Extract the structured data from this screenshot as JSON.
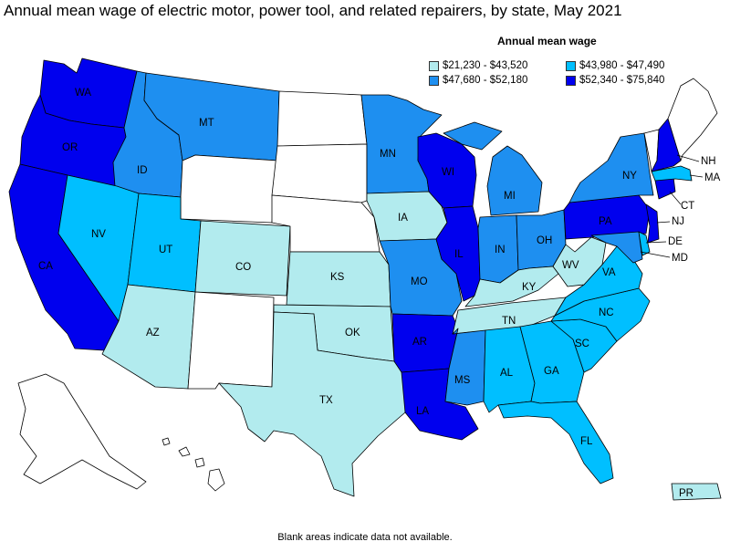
{
  "title": "Annual mean wage of electric motor, power tool, and related repairers, by state, May 2021",
  "legend": {
    "title": "Annual mean wage",
    "items": [
      {
        "label": "$21,230 - $43,520",
        "color": "#b2ebee"
      },
      {
        "label": "$43,980 - $47,490",
        "color": "#00bfff"
      },
      {
        "label": "$47,680 - $52,180",
        "color": "#1e8ff0"
      },
      {
        "label": "$52,340 - $75,840",
        "color": "#0000ee"
      }
    ]
  },
  "note": "Blank areas indicate data not available.",
  "states": {
    "WA": {
      "label": "WA",
      "tier": 4
    },
    "OR": {
      "label": "OR",
      "tier": 4
    },
    "CA": {
      "label": "CA",
      "tier": 4
    },
    "ID": {
      "label": "ID",
      "tier": 3
    },
    "NV": {
      "label": "NV",
      "tier": 2
    },
    "MT": {
      "label": "MT",
      "tier": 3
    },
    "WY": {
      "label": "",
      "tier": 0
    },
    "UT": {
      "label": "UT",
      "tier": 2
    },
    "AZ": {
      "label": "AZ",
      "tier": 1
    },
    "CO": {
      "label": "CO",
      "tier": 1
    },
    "NM": {
      "label": "",
      "tier": 0
    },
    "ND": {
      "label": "",
      "tier": 0
    },
    "SD": {
      "label": "",
      "tier": 0
    },
    "NE": {
      "label": "",
      "tier": 0
    },
    "KS": {
      "label": "KS",
      "tier": 1
    },
    "OK": {
      "label": "OK",
      "tier": 1
    },
    "TX": {
      "label": "TX",
      "tier": 1
    },
    "MN": {
      "label": "MN",
      "tier": 3
    },
    "IA": {
      "label": "IA",
      "tier": 1
    },
    "MO": {
      "label": "MO",
      "tier": 3
    },
    "AR": {
      "label": "AR",
      "tier": 4
    },
    "LA": {
      "label": "LA",
      "tier": 4
    },
    "WI": {
      "label": "WI",
      "tier": 4
    },
    "IL": {
      "label": "IL",
      "tier": 4
    },
    "MI": {
      "label": "MI",
      "tier": 3
    },
    "IN": {
      "label": "IN",
      "tier": 3
    },
    "OH": {
      "label": "OH",
      "tier": 3
    },
    "KY": {
      "label": "KY",
      "tier": 1
    },
    "TN": {
      "label": "TN",
      "tier": 1
    },
    "MS": {
      "label": "MS",
      "tier": 3
    },
    "AL": {
      "label": "AL",
      "tier": 2
    },
    "GA": {
      "label": "GA",
      "tier": 2
    },
    "FL": {
      "label": "FL",
      "tier": 2
    },
    "SC": {
      "label": "SC",
      "tier": 2
    },
    "NC": {
      "label": "NC",
      "tier": 2
    },
    "VA": {
      "label": "VA",
      "tier": 2
    },
    "WV": {
      "label": "WV",
      "tier": 1
    },
    "PA": {
      "label": "PA",
      "tier": 4
    },
    "NY": {
      "label": "NY",
      "tier": 3
    },
    "MD": {
      "label": "MD",
      "tier": 3
    },
    "DE": {
      "label": "DE",
      "tier": 2
    },
    "NJ": {
      "label": "NJ",
      "tier": 4
    },
    "CT": {
      "label": "CT",
      "tier": 4
    },
    "MA": {
      "label": "MA",
      "tier": 2
    },
    "VT": {
      "label": "",
      "tier": 0
    },
    "NH": {
      "label": "NH",
      "tier": 4
    },
    "ME": {
      "label": "",
      "tier": 0
    },
    "AK": {
      "label": "",
      "tier": 0
    },
    "HI": {
      "label": "",
      "tier": 0
    },
    "PR": {
      "label": "PR",
      "tier": 1
    }
  }
}
